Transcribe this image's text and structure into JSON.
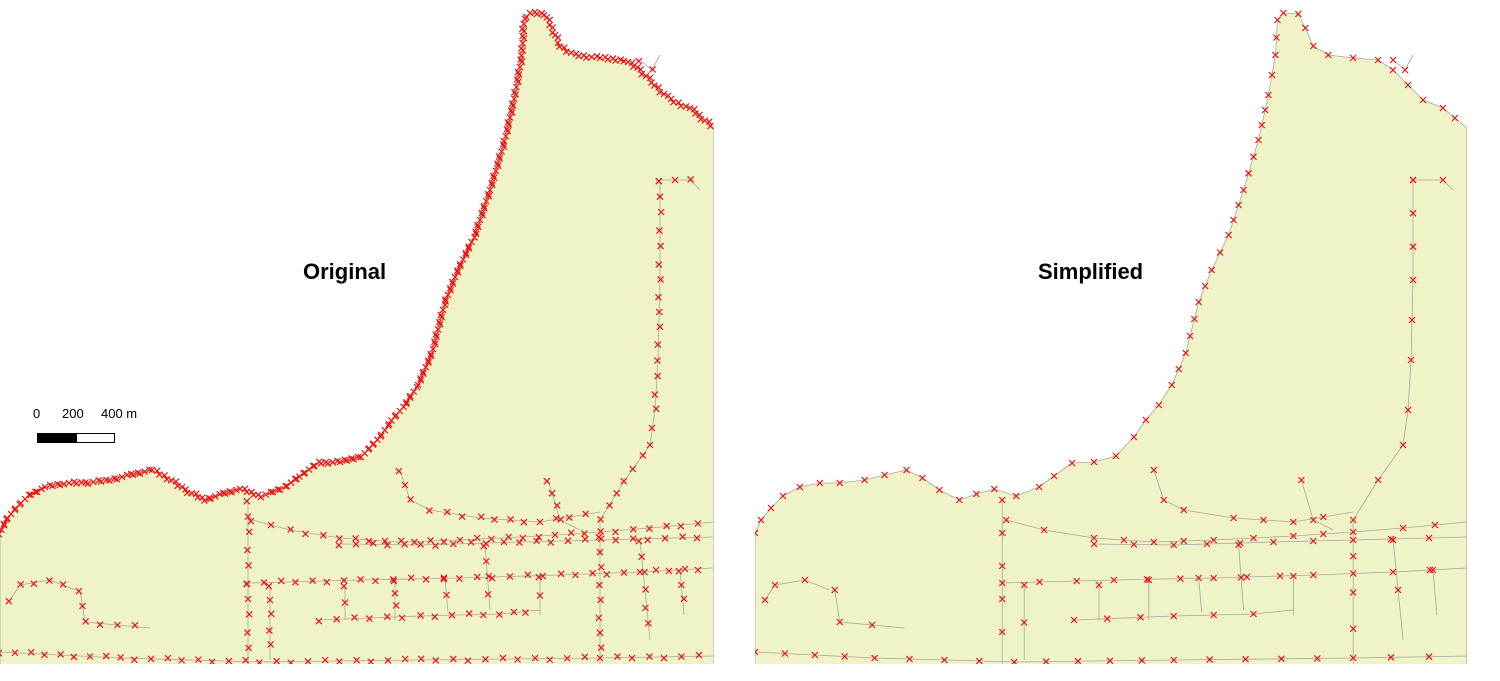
{
  "panels": {
    "original": {
      "title": "Original"
    },
    "simplified": {
      "title": "Simplified"
    }
  },
  "scalebar": {
    "labels": [
      "0",
      "200",
      "400 m"
    ]
  },
  "colors": {
    "land": "#f0f3c8",
    "vertex": "#ee1111",
    "line": "#a6a6a0"
  }
}
